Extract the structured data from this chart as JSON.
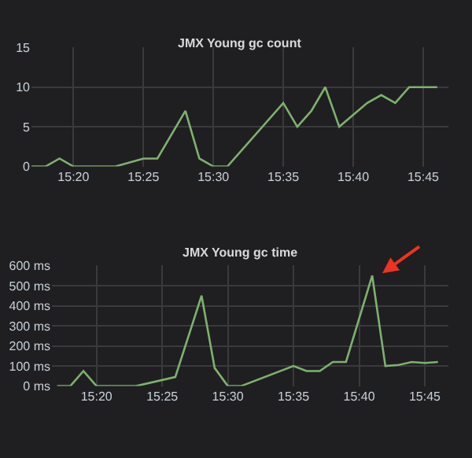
{
  "chart_data": [
    {
      "type": "line",
      "title": "JMX Young gc count",
      "x": [
        15.2833,
        15.3,
        15.3167,
        15.3333,
        15.3833,
        15.4167,
        15.4333,
        15.4667,
        15.4833,
        15.5,
        15.5167,
        15.5833,
        15.6,
        15.6167,
        15.6333,
        15.65,
        15.6833,
        15.7,
        15.7167,
        15.7333,
        15.7667
      ],
      "series": [
        {
          "color": "#7eb26d",
          "values": [
            0,
            0,
            1,
            0,
            0,
            1,
            1,
            7,
            1,
            0,
            0,
            8,
            5,
            7,
            10,
            5,
            8,
            9,
            8,
            10,
            10
          ]
        }
      ],
      "xlim": [
        15.2833,
        15.78
      ],
      "xticks": [
        {
          "value": 15.3333,
          "label": "15:20"
        },
        {
          "value": 15.4167,
          "label": "15:25"
        },
        {
          "value": 15.5,
          "label": "15:30"
        },
        {
          "value": 15.5833,
          "label": "15:35"
        },
        {
          "value": 15.6667,
          "label": "15:40"
        },
        {
          "value": 15.75,
          "label": "15:45"
        }
      ],
      "ylim": [
        0,
        15
      ],
      "yticks": [
        0,
        5,
        10,
        15
      ],
      "grid": true,
      "marker": "none"
    },
    {
      "type": "line",
      "title": "JMX Young gc time",
      "x": [
        15.2833,
        15.3,
        15.3167,
        15.3333,
        15.3833,
        15.4333,
        15.4667,
        15.4833,
        15.5,
        15.5167,
        15.5833,
        15.6,
        15.6167,
        15.6333,
        15.65,
        15.6833,
        15.7,
        15.7167,
        15.7333,
        15.75,
        15.7667
      ],
      "series": [
        {
          "color": "#7eb26d",
          "values": [
            0,
            0,
            75,
            0,
            0,
            45,
            450,
            90,
            0,
            0,
            100,
            75,
            75,
            120,
            120,
            550,
            100,
            105,
            120,
            115,
            120
          ]
        }
      ],
      "xlim": [
        15.2767,
        15.78
      ],
      "xticks": [
        {
          "value": 15.3333,
          "label": "15:20"
        },
        {
          "value": 15.4167,
          "label": "15:25"
        },
        {
          "value": 15.5,
          "label": "15:30"
        },
        {
          "value": 15.5833,
          "label": "15:35"
        },
        {
          "value": 15.6667,
          "label": "15:40"
        },
        {
          "value": 15.75,
          "label": "15:45"
        }
      ],
      "ylim": [
        0,
        600
      ],
      "yticks": [
        {
          "value": 0,
          "label": "0 ms"
        },
        {
          "value": 100,
          "label": "100 ms"
        },
        {
          "value": 200,
          "label": "200 ms"
        },
        {
          "value": 300,
          "label": "300 ms"
        },
        {
          "value": 400,
          "label": "400 ms"
        },
        {
          "value": 500,
          "label": "500 ms"
        },
        {
          "value": 600,
          "label": "600 ms"
        }
      ],
      "grid": true,
      "marker": "none"
    }
  ]
}
